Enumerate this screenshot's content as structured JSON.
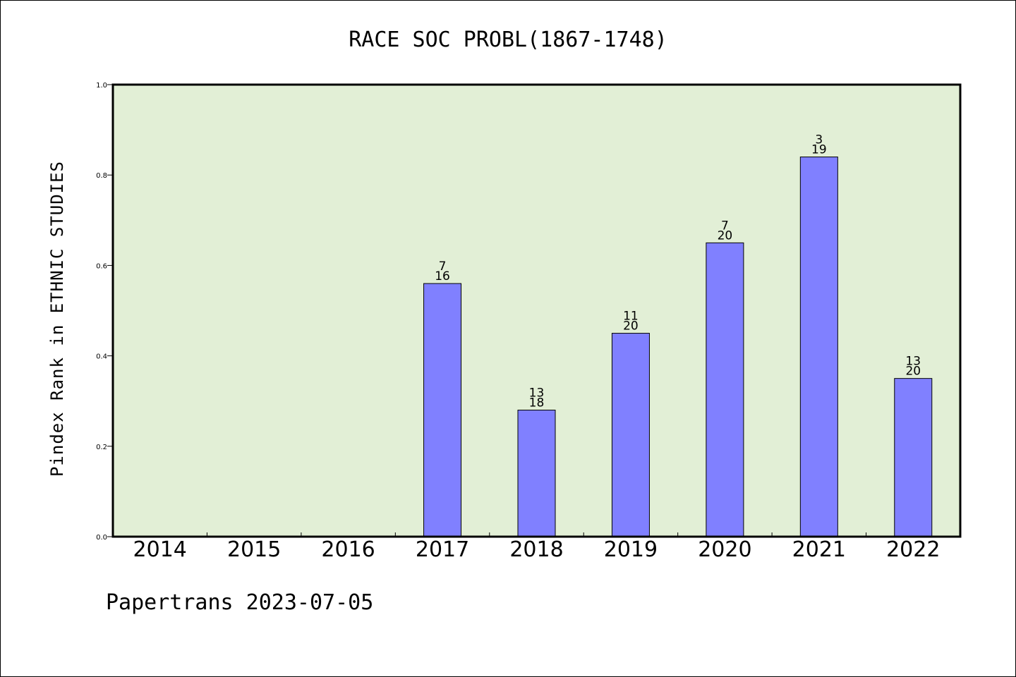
{
  "chart_data": {
    "type": "bar",
    "title": "RACE SOC PROBL(1867-1748)",
    "ylabel": "Pindex Rank in ETHNIC STUDIES",
    "xlabel": "",
    "ylim": [
      0,
      1.0
    ],
    "yticks": [
      "0.0",
      "0.2",
      "0.4",
      "0.6",
      "0.8",
      "1.0"
    ],
    "ytick_values": [
      0.0,
      0.2,
      0.4,
      0.6,
      0.8,
      1.0
    ],
    "categories": [
      "2014",
      "2015",
      "2016",
      "2017",
      "2018",
      "2019",
      "2020",
      "2021",
      "2022"
    ],
    "values": [
      null,
      null,
      null,
      0.56,
      0.28,
      0.45,
      0.65,
      0.84,
      0.35
    ],
    "rank": [
      null,
      null,
      null,
      "7",
      "13",
      "11",
      "7",
      "3",
      "13"
    ],
    "total": [
      null,
      null,
      null,
      "16",
      "18",
      "20",
      "20",
      "19",
      "20"
    ],
    "grid": false,
    "colors": {
      "bar": "#8080ff",
      "plot_bg": "#e2efd6",
      "axis": "#000000"
    }
  },
  "footer": "Papertrans 2023-07-05"
}
